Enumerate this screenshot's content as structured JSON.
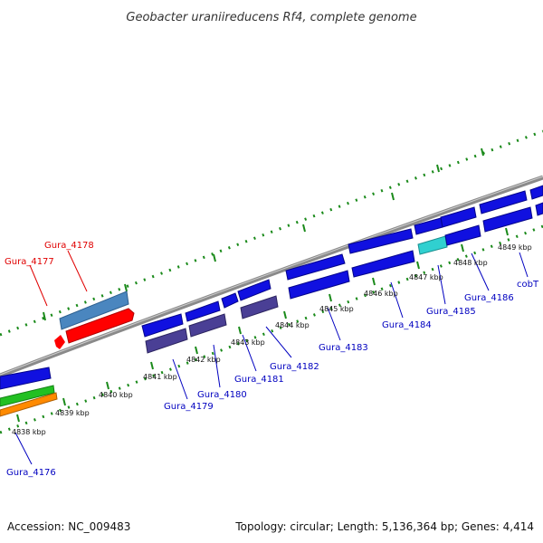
{
  "title": "Geobacter uraniireducens Rf4, complete genome",
  "footer": {
    "accession": "Accession: NC_009483",
    "summary": "Topology: circular; Length: 5,136,364 bp; Genes: 4,414"
  },
  "colors": {
    "backbone": "#8a8a8a",
    "ticks": "#1a8a1a",
    "gene_default": "#1010e0",
    "gene_dark": "#4a3f95",
    "gene_steel": "#4a86bf",
    "gene_red": "#ff0000",
    "gene_cyan": "#30d0d0",
    "gene_green": "#22c022",
    "gene_orange": "#ff8a00",
    "label_blue": "#0000c0",
    "label_red": "#e00000"
  },
  "kbp_ticks": [
    "4838 kbp",
    "4839 kbp",
    "4840 kbp",
    "4841 kbp",
    "4842 kbp",
    "4843 kbp",
    "4844 kbp",
    "4845 kbp",
    "4846 kbp",
    "4847 kbp",
    "4848 kbp",
    "4849 kbp"
  ],
  "gene_labels": {
    "gura_4176": "Gura_4176",
    "gura_4177": "Gura_4177",
    "gura_4178": "Gura_4178",
    "gura_4179": "Gura_4179",
    "gura_4180": "Gura_4180",
    "gura_4181": "Gura_4181",
    "gura_4182": "Gura_4182",
    "gura_4183": "Gura_4183",
    "gura_4184": "Gura_4184",
    "gura_4185": "Gura_4185",
    "gura_4186": "Gura_4186",
    "cobT": "cobT"
  }
}
